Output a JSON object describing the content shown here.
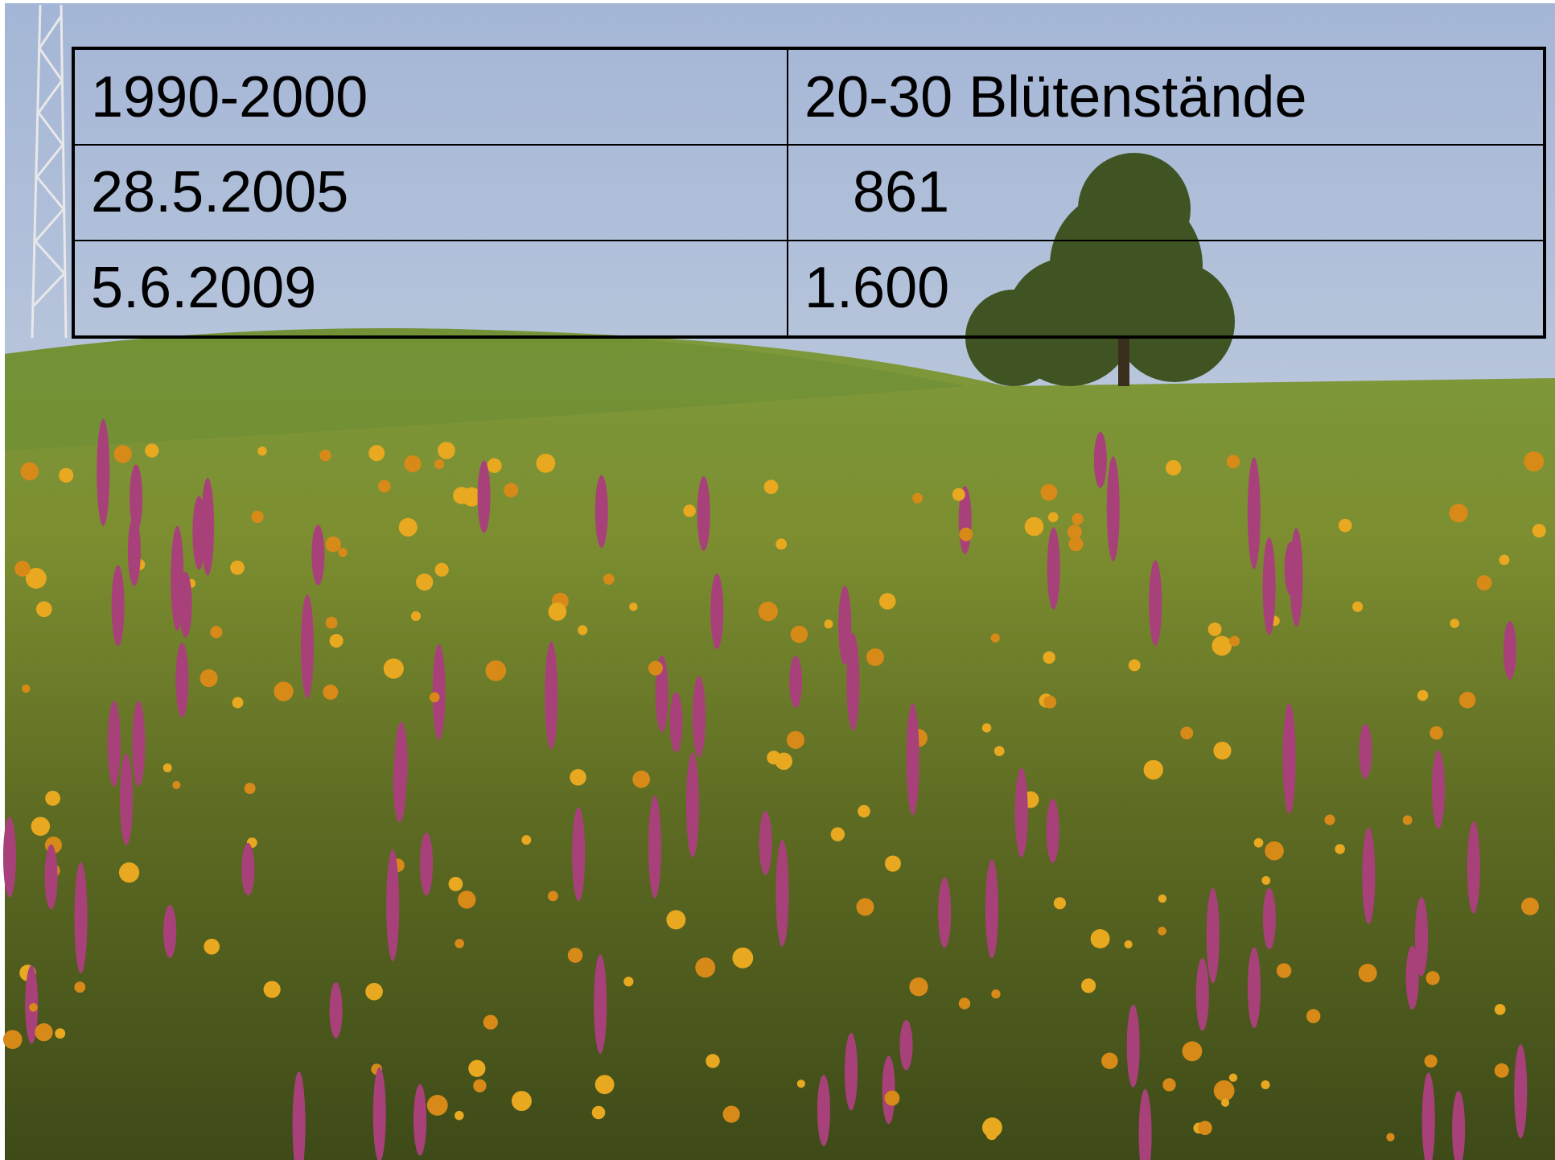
{
  "table": {
    "rows": [
      [
        "1990-2000",
        "20-30 Blütenstände"
      ],
      [
        "28.5.2005",
        "861"
      ],
      [
        "5.6.2009",
        "1.600"
      ]
    ]
  }
}
